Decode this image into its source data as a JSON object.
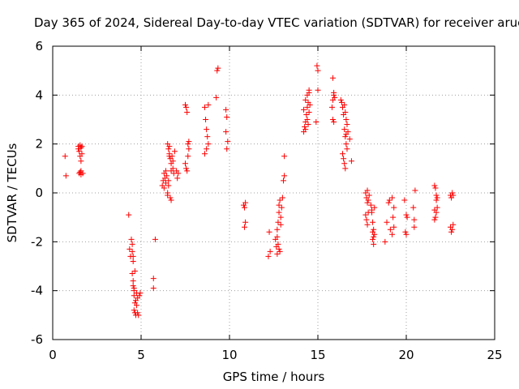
{
  "chart_data": {
    "type": "scatter",
    "title": "Day 365 of 2024, Sidereal Day-to-day VTEC variation (SDTVAR) for receiver aruc",
    "xlabel": "GPS time / hours",
    "ylabel": "SDTVAR / TECUs",
    "xlim": [
      0,
      25
    ],
    "ylim": [
      -6,
      6
    ],
    "xticks": [
      0,
      5,
      10,
      15,
      20,
      25
    ],
    "yticks": [
      -6,
      -4,
      -2,
      0,
      2,
      4,
      6
    ],
    "xtick_labels": [
      "0",
      "5",
      "10",
      "15",
      "20",
      "25"
    ],
    "ytick_labels": [
      "-6",
      "-4",
      "-2",
      "0",
      "2",
      "4",
      "6"
    ],
    "grid": true,
    "marker": "+",
    "color": "#ff0000",
    "series": [
      {
        "name": "SDTVAR",
        "x": [
          0.7,
          0.75,
          1.45,
          1.5,
          1.5,
          1.55,
          1.55,
          1.6,
          1.6,
          1.6,
          1.65,
          1.7,
          1.45,
          1.55,
          1.6,
          1.65,
          4.3,
          4.35,
          4.4,
          4.45,
          4.5,
          4.5,
          4.55,
          4.5,
          4.55,
          4.6,
          4.6,
          4.65,
          4.6,
          4.65,
          4.7,
          4.75,
          4.8,
          4.55,
          4.6,
          4.7,
          4.75,
          4.8,
          4.85,
          4.9,
          4.95,
          4.55,
          4.65,
          5.8,
          5.7,
          5.7,
          6.2,
          6.25,
          6.3,
          6.3,
          6.35,
          6.4,
          6.4,
          6.45,
          6.5,
          6.5,
          6.55,
          6.55,
          6.6,
          6.6,
          6.65,
          6.7,
          6.7,
          6.75,
          6.8,
          6.8,
          6.85,
          6.9,
          6.5,
          6.55,
          6.6,
          6.65,
          6.7,
          7.0,
          7.05,
          7.1,
          7.5,
          7.55,
          7.6,
          7.65,
          7.7,
          7.5,
          7.55,
          7.6,
          7.65,
          7.7,
          8.6,
          8.65,
          8.7,
          8.75,
          8.8,
          8.6,
          8.7,
          8.8,
          9.3,
          9.35,
          9.25,
          9.8,
          9.85,
          9.8,
          9.9,
          9.85,
          10.8,
          10.85,
          10.9,
          10.85,
          10.9,
          12.2,
          12.3,
          12.25,
          12.6,
          12.65,
          12.7,
          12.7,
          12.75,
          12.8,
          12.8,
          12.85,
          12.9,
          12.9,
          12.95,
          13.0,
          13.05,
          13.1,
          13.1,
          12.7,
          12.75,
          12.8,
          12.85,
          14.2,
          14.25,
          14.3,
          14.35,
          14.4,
          14.45,
          14.5,
          14.2,
          14.3,
          14.4,
          14.5,
          14.55,
          14.3,
          14.4,
          14.5,
          14.45,
          14.95,
          15.0,
          15.0,
          14.9,
          15.85,
          15.9,
          15.95,
          15.8,
          15.85,
          15.9,
          15.85,
          15.9,
          16.3,
          16.35,
          16.4,
          16.45,
          16.5,
          16.55,
          16.6,
          16.65,
          16.4,
          16.45,
          16.5,
          16.55,
          16.6,
          16.5,
          16.55,
          16.6,
          16.65,
          16.7,
          16.8,
          16.9,
          17.7,
          17.75,
          17.8,
          17.85,
          17.75,
          17.8,
          17.85,
          17.7,
          17.8,
          17.9,
          18.0,
          18.05,
          18.1,
          18.15,
          18.2,
          18.1,
          18.15,
          18.2,
          18.05,
          18.1,
          18.15,
          18.8,
          18.9,
          19.0,
          19.05,
          19.1,
          19.2,
          19.3,
          19.2,
          19.3,
          19.25,
          19.9,
          20.0,
          20.05,
          19.95,
          20.0,
          20.4,
          20.45,
          20.5,
          20.45,
          21.6,
          21.65,
          21.7,
          21.75,
          21.6,
          21.7,
          21.65,
          21.75,
          21.6,
          21.7,
          22.5,
          22.55,
          22.6,
          22.65,
          22.5,
          22.6,
          22.65,
          22.55
        ],
        "y": [
          1.5,
          0.7,
          1.9,
          1.7,
          0.8,
          1.95,
          1.5,
          1.85,
          0.9,
          0.75,
          1.9,
          0.8,
          1.8,
          0.85,
          1.3,
          1.6,
          -0.9,
          -2.3,
          -2.6,
          -1.9,
          -2.1,
          -2.4,
          -2.6,
          -3.3,
          -3.6,
          -3.9,
          -4.2,
          -4.5,
          -4.8,
          -4.9,
          -5.0,
          -4.1,
          -4.3,
          -3.8,
          -4.0,
          -4.4,
          -4.6,
          -4.9,
          -5.0,
          -4.2,
          -4.1,
          -2.8,
          -3.2,
          -1.9,
          -3.5,
          -3.9,
          0.3,
          0.5,
          0.8,
          0.2,
          0.6,
          0.9,
          0.4,
          0.7,
          0.0,
          -0.1,
          0.3,
          0.5,
          1.9,
          1.6,
          1.4,
          1.2,
          0.9,
          1.5,
          1.3,
          1.0,
          0.8,
          1.7,
          2.0,
          1.8,
          1.5,
          -0.2,
          -0.3,
          0.9,
          0.6,
          0.8,
          3.6,
          3.5,
          3.3,
          2.0,
          1.8,
          1.2,
          1.0,
          0.9,
          1.5,
          2.1,
          3.5,
          3.0,
          2.6,
          2.3,
          2.0,
          1.6,
          1.8,
          3.6,
          5.0,
          5.1,
          3.9,
          3.4,
          3.1,
          2.5,
          2.1,
          1.8,
          -0.5,
          -0.6,
          -1.2,
          -1.4,
          -0.4,
          -2.6,
          -2.4,
          -1.6,
          -1.9,
          -2.2,
          -2.5,
          -1.5,
          -1.2,
          -0.8,
          -0.5,
          -0.3,
          -1.0,
          -1.3,
          -0.6,
          -0.2,
          0.5,
          0.7,
          1.5,
          -1.8,
          -2.1,
          -2.3,
          -2.4,
          2.5,
          2.7,
          2.9,
          3.2,
          3.5,
          3.7,
          4.1,
          3.4,
          3.8,
          4.0,
          4.2,
          3.6,
          2.6,
          3.0,
          3.3,
          2.8,
          5.2,
          5.0,
          4.2,
          2.9,
          4.7,
          4.0,
          3.9,
          3.5,
          3.0,
          2.9,
          3.8,
          4.1,
          3.8,
          3.7,
          3.5,
          3.2,
          2.6,
          2.3,
          2.0,
          1.8,
          1.6,
          1.4,
          1.2,
          1.0,
          2.4,
          3.6,
          3.3,
          3.0,
          2.8,
          2.5,
          2.2,
          1.3,
          0.0,
          -0.2,
          -0.4,
          -0.8,
          -1.1,
          -1.3,
          -0.3,
          -0.9,
          0.1,
          -0.1,
          -0.5,
          -0.8,
          -1.2,
          -1.5,
          -1.7,
          -1.9,
          -2.1,
          -0.6,
          -0.7,
          -1.6,
          -1.8,
          -2.0,
          -1.2,
          -0.4,
          -0.3,
          -1.5,
          -1.7,
          -1.4,
          -0.2,
          -0.6,
          -1.0,
          -0.3,
          -0.9,
          -1.0,
          -1.6,
          -1.7,
          -0.6,
          -1.1,
          0.1,
          -1.4,
          0.3,
          0.2,
          -0.1,
          -0.2,
          -0.7,
          -0.8,
          -1.0,
          -0.6,
          -1.1,
          -0.3,
          -0.1,
          -0.2,
          0.0,
          -0.1,
          -1.4,
          -1.5,
          -1.3,
          -1.6
        ]
      }
    ]
  }
}
